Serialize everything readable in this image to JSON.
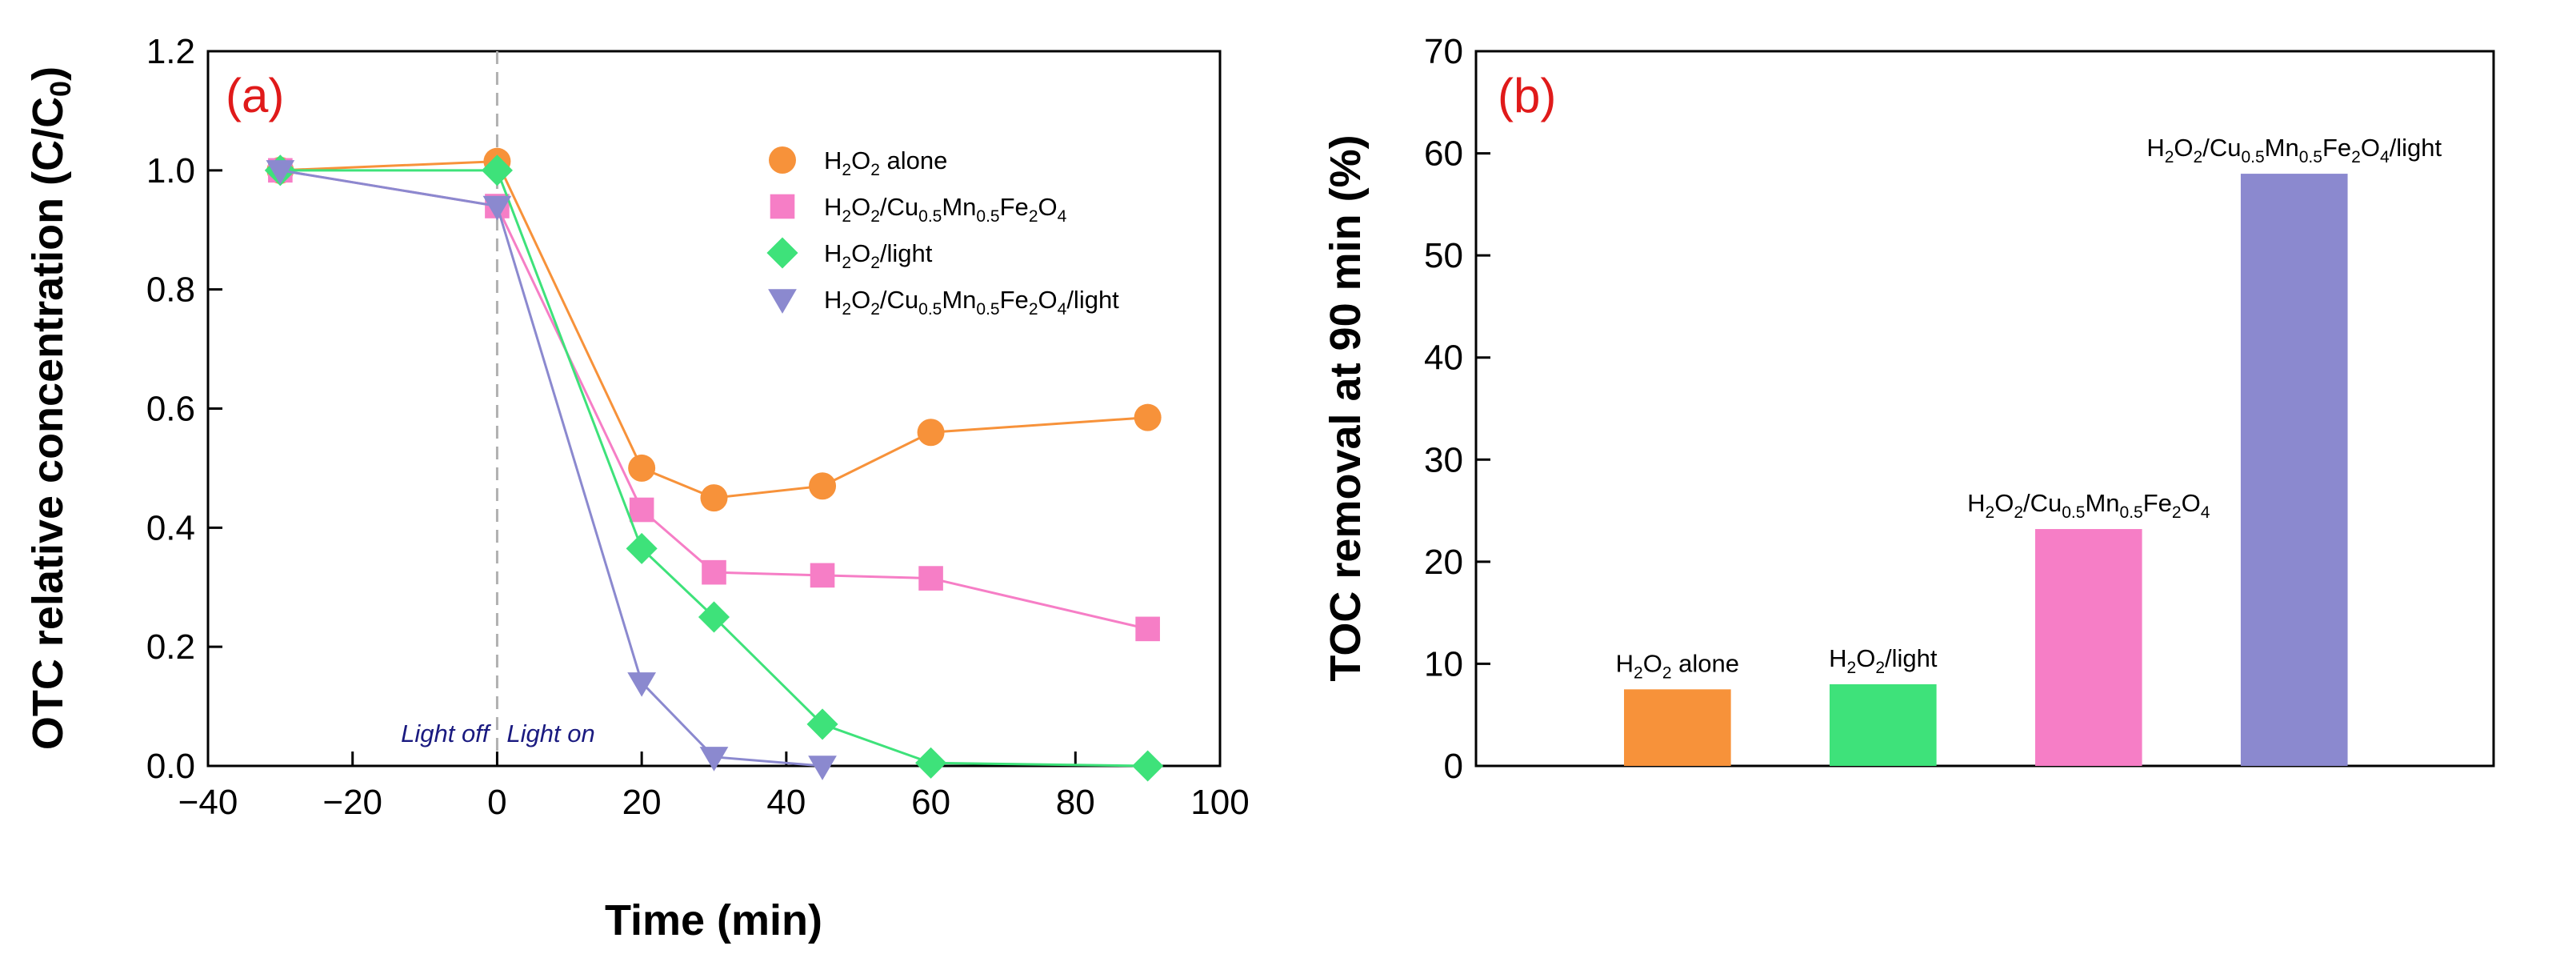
{
  "colors": {
    "h2o2_alone": "#f7923a",
    "h2o2_cu": "#f67ec6",
    "h2o2_light": "#3ee27a",
    "h2o2_cu_light": "#8b89cf",
    "panel_label": "#e01a1a",
    "annotation": "#1a1a80"
  },
  "chart_data": [
    {
      "type": "line",
      "panel_label": "(a)",
      "xlabel": "Time (min)",
      "ylabel": "OTC relative concentration (C/C0)",
      "xlim": [
        -40,
        100
      ],
      "ylim": [
        0,
        1.2
      ],
      "xticks": [
        "-40",
        "-20",
        "0",
        "20",
        "40",
        "60",
        "80",
        "100"
      ],
      "yticks": [
        "0.0",
        "0.2",
        "0.4",
        "0.6",
        "0.8",
        "1.0",
        "1.2"
      ],
      "annotations": [
        "Light off",
        "Light on"
      ],
      "series": [
        {
          "name": "H2O2 alone",
          "marker": "circle",
          "x": [
            -30,
            0,
            20,
            30,
            45,
            60,
            90
          ],
          "values": [
            1.0,
            1.015,
            0.5,
            0.45,
            0.47,
            0.56,
            0.585
          ]
        },
        {
          "name": "H2O2/Cu0.5Mn0.5Fe2O4",
          "marker": "square",
          "x": [
            -30,
            0,
            20,
            30,
            45,
            60,
            90
          ],
          "values": [
            1.0,
            0.94,
            0.43,
            0.325,
            0.32,
            0.315,
            0.23
          ]
        },
        {
          "name": "H2O2/light",
          "marker": "diamond",
          "x": [
            -30,
            0,
            20,
            30,
            45,
            60,
            90
          ],
          "values": [
            1.0,
            1.0,
            0.365,
            0.25,
            0.07,
            0.005,
            0.0
          ]
        },
        {
          "name": "H2O2/Cu0.5Mn0.5Fe2O4/light",
          "marker": "triangle-down",
          "x": [
            -30,
            0,
            20,
            30,
            45
          ],
          "values": [
            1.0,
            0.94,
            0.14,
            0.015,
            0.0
          ]
        }
      ]
    },
    {
      "type": "bar",
      "panel_label": "(b)",
      "ylabel": "TOC removal at 90 min (%)",
      "ylim": [
        0,
        70
      ],
      "yticks": [
        "0",
        "10",
        "20",
        "30",
        "40",
        "50",
        "60",
        "70"
      ],
      "categories": [
        "H2O2 alone",
        "H2O2/light",
        "H2O2/Cu0.5Mn0.5Fe2O4",
        "H2O2/Cu0.5Mn0.5Fe2O4/light"
      ],
      "values": [
        7.5,
        8.0,
        23.2,
        58.0
      ]
    }
  ]
}
